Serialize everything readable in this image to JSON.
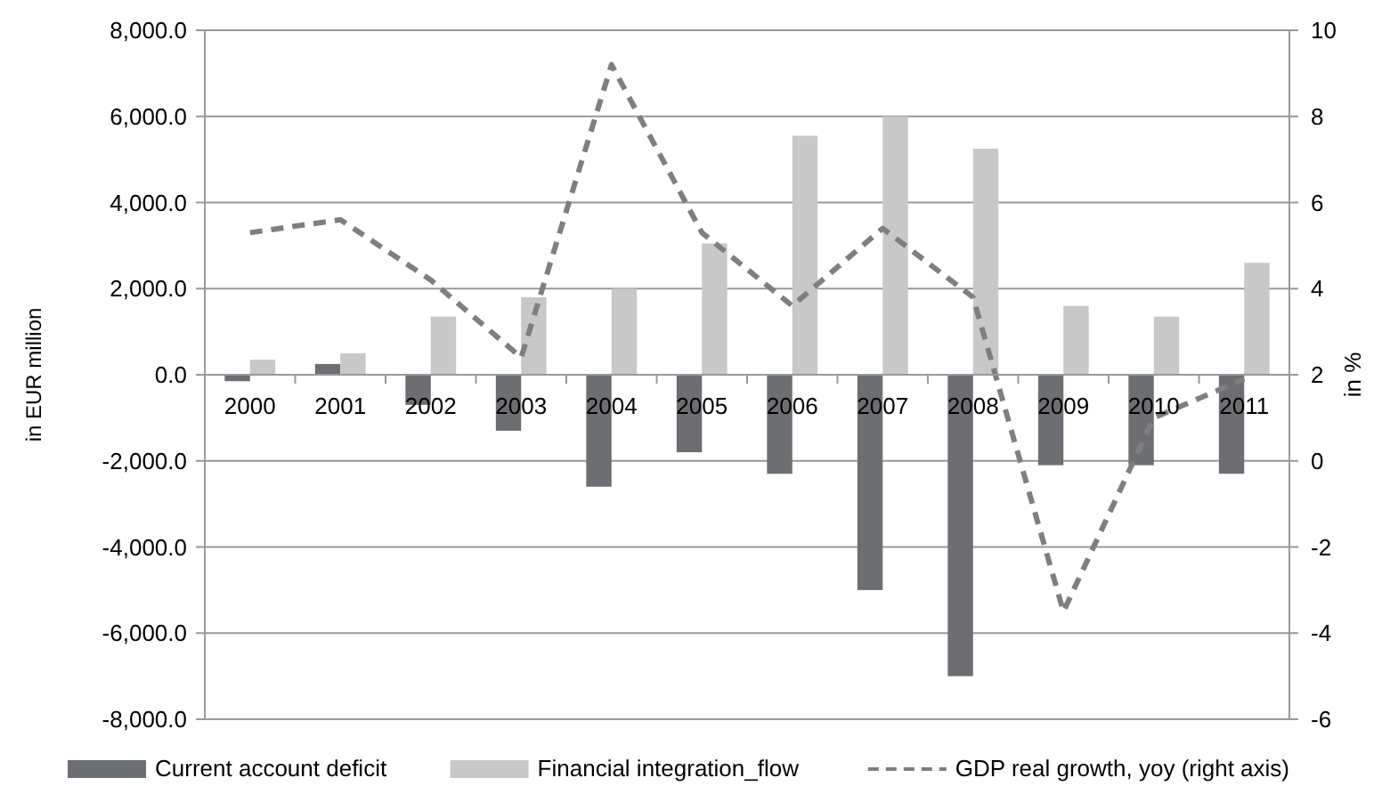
{
  "chart_data": {
    "type": "bar",
    "categories": [
      "2000",
      "2001",
      "2002",
      "2003",
      "2004",
      "2005",
      "2006",
      "2007",
      "2008",
      "2009",
      "2010",
      "2011"
    ],
    "series": [
      {
        "name": "Current account deficit",
        "color": "#6d6e71",
        "values": [
          -150,
          250,
          -700,
          -1300,
          -2600,
          -1800,
          -2300,
          -5000,
          -7000,
          -2100,
          -2100,
          -2300
        ]
      },
      {
        "name": "Financial integration_flow",
        "color": "#c8c8c8",
        "values": [
          350,
          500,
          1350,
          1800,
          2000,
          3050,
          5550,
          6000,
          5250,
          1600,
          1350,
          2600
        ]
      },
      {
        "name": "GDP real growth,  yoy (right axis)",
        "color": "#7f7f7f",
        "type": "line",
        "axis": "y2",
        "line_style": "dashed",
        "values": [
          5.3,
          5.6,
          4.2,
          2.4,
          9.2,
          5.3,
          3.6,
          5.4,
          3.8,
          -3.5,
          1.0,
          1.9
        ]
      }
    ],
    "ylabel": "in EUR million",
    "y2label": "in %",
    "ylim": [
      -8000,
      8000
    ],
    "yticks": [
      {
        "value": -8000,
        "label": "-8,000.0"
      },
      {
        "value": -6000,
        "label": "-6,000.0"
      },
      {
        "value": -4000,
        "label": "-4,000.0"
      },
      {
        "value": -2000,
        "label": "-2,000.0"
      },
      {
        "value": 0,
        "label": "0.0"
      },
      {
        "value": 2000,
        "label": "2,000.0"
      },
      {
        "value": 4000,
        "label": "4,000.0"
      },
      {
        "value": 6000,
        "label": "6,000.0"
      },
      {
        "value": 8000,
        "label": "8,000.0"
      }
    ],
    "y2lim": [
      -6,
      10
    ],
    "y2ticks": [
      -6,
      -4,
      -2,
      0,
      2,
      4,
      6,
      8,
      10
    ],
    "grid": "y",
    "legend": "bottom",
    "marker": "none"
  }
}
